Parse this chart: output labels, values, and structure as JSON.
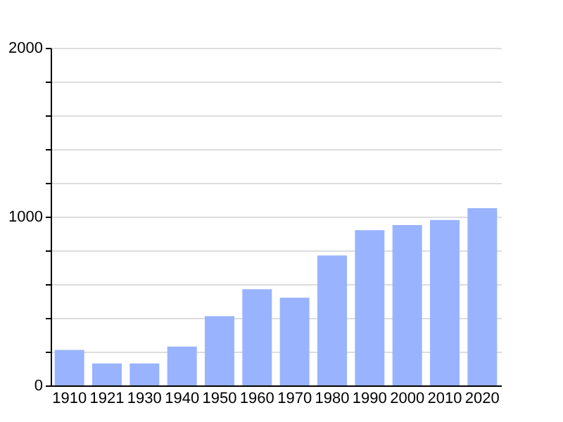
{
  "chart_data": {
    "type": "bar",
    "categories": [
      "1910",
      "1921",
      "1930",
      "1940",
      "1950",
      "1960",
      "1970",
      "1980",
      "1990",
      "2000",
      "2010",
      "2020"
    ],
    "values": [
      210,
      130,
      130,
      230,
      410,
      570,
      520,
      770,
      920,
      950,
      980,
      1050
    ],
    "color": "#99b3ff",
    "ylim": [
      0,
      2000
    ],
    "yticks": [
      0,
      {
        "value": 200,
        "label": null
      },
      {
        "value": 400,
        "label": null
      },
      {
        "value": 600,
        "label": null
      },
      {
        "value": 800,
        "label": null
      },
      1000,
      {
        "value": 1200,
        "label": null
      },
      {
        "value": 1400,
        "label": null
      },
      {
        "value": 1600,
        "label": null
      },
      {
        "value": 1800,
        "label": null
      },
      2000
    ],
    "grid": "y"
  }
}
